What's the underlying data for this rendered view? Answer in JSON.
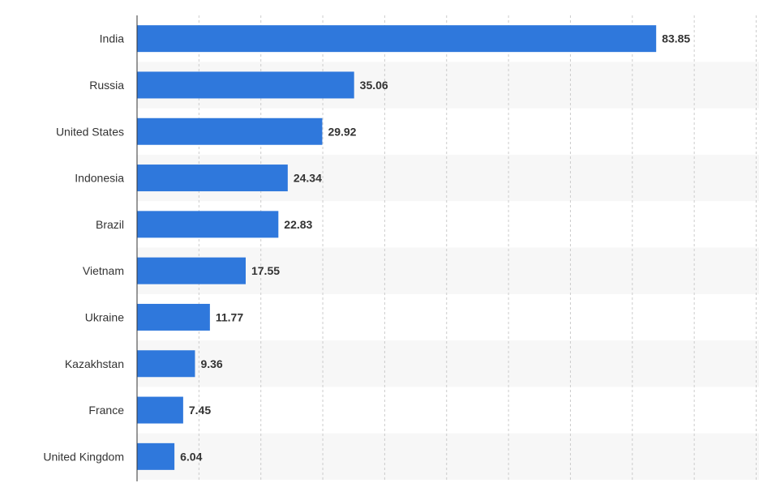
{
  "chart_data": {
    "type": "bar",
    "orientation": "horizontal",
    "title": "",
    "xlabel": "",
    "ylabel": "",
    "categories": [
      "India",
      "Russia",
      "United States",
      "Indonesia",
      "Brazil",
      "Vietnam",
      "Ukraine",
      "Kazakhstan",
      "France",
      "United Kingdom"
    ],
    "values": [
      83.85,
      35.06,
      29.92,
      24.34,
      22.83,
      17.55,
      11.77,
      9.36,
      7.45,
      6.04
    ],
    "value_labels": [
      "83.85",
      "35.06",
      "29.92",
      "24.34",
      "22.83",
      "17.55",
      "11.77",
      "9.36",
      "7.45",
      "6.04"
    ],
    "xlim": [
      0,
      100
    ],
    "x_grid_step": 10,
    "grid": true,
    "colors": {
      "bar": "#2f78dc",
      "stripe": "#f7f7f7",
      "grid": "#cccccc",
      "axis": "#333333",
      "text": "#333333"
    }
  }
}
